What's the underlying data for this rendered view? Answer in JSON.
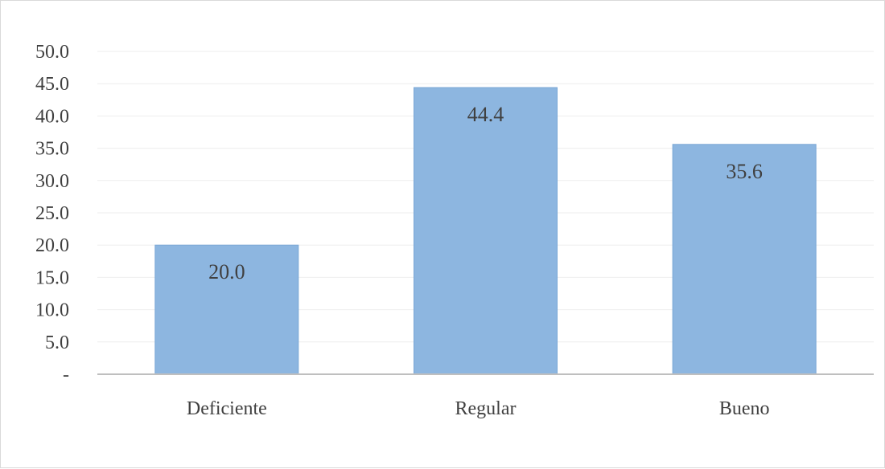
{
  "chart_data": {
    "type": "bar",
    "categories": [
      "Deficiente",
      "Regular",
      "Bueno"
    ],
    "values": [
      20.0,
      44.4,
      35.6
    ],
    "data_labels": [
      "20.0",
      "44.4",
      "35.6"
    ],
    "ylim": [
      0,
      50
    ],
    "y_ticks": [
      0,
      5,
      10,
      15,
      20,
      25,
      30,
      35,
      40,
      45,
      50
    ],
    "y_tick_labels": [
      "-",
      "5.0",
      "10.0",
      "15.0",
      "20.0",
      "25.0",
      "30.0",
      "35.0",
      "40.0",
      "45.0",
      "50.0"
    ],
    "title": "",
    "xlabel": "",
    "ylabel": "",
    "grid": true,
    "legend": "none",
    "bar_color": "#8db6e0",
    "bar_edge_color": "#7aa7d6",
    "gridline_color": "#eeeeee",
    "axis_color": "#bfbfbf"
  }
}
